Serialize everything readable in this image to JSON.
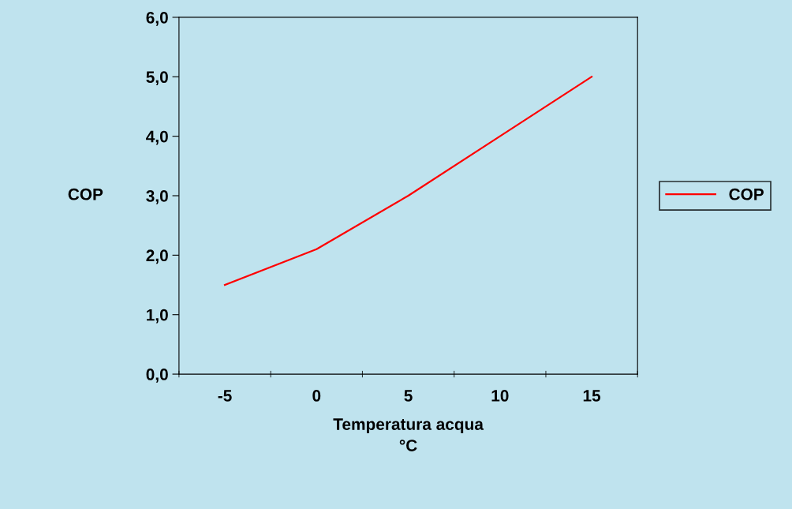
{
  "chart_data": {
    "type": "line",
    "xlabel": "Temperatura acqua\n°C",
    "ylabel": "COP",
    "categories": [
      "-5",
      "0",
      "5",
      "10",
      "15"
    ],
    "series": [
      {
        "name": "COP",
        "color": "#ff0000",
        "values": [
          1.5,
          2.1,
          3.0,
          4.0,
          5.0
        ]
      }
    ],
    "ylim": [
      0,
      6
    ],
    "yticks": [
      {
        "value": 0,
        "label": "0,0"
      },
      {
        "value": 1,
        "label": "1,0"
      },
      {
        "value": 2,
        "label": "2,0"
      },
      {
        "value": 3,
        "label": "3,0"
      },
      {
        "value": 4,
        "label": "4,0"
      },
      {
        "value": 5,
        "label": "5,0"
      },
      {
        "value": 6,
        "label": "6,0"
      }
    ],
    "grid": false,
    "legend": "right",
    "marker": "none",
    "line_style": "solid"
  }
}
